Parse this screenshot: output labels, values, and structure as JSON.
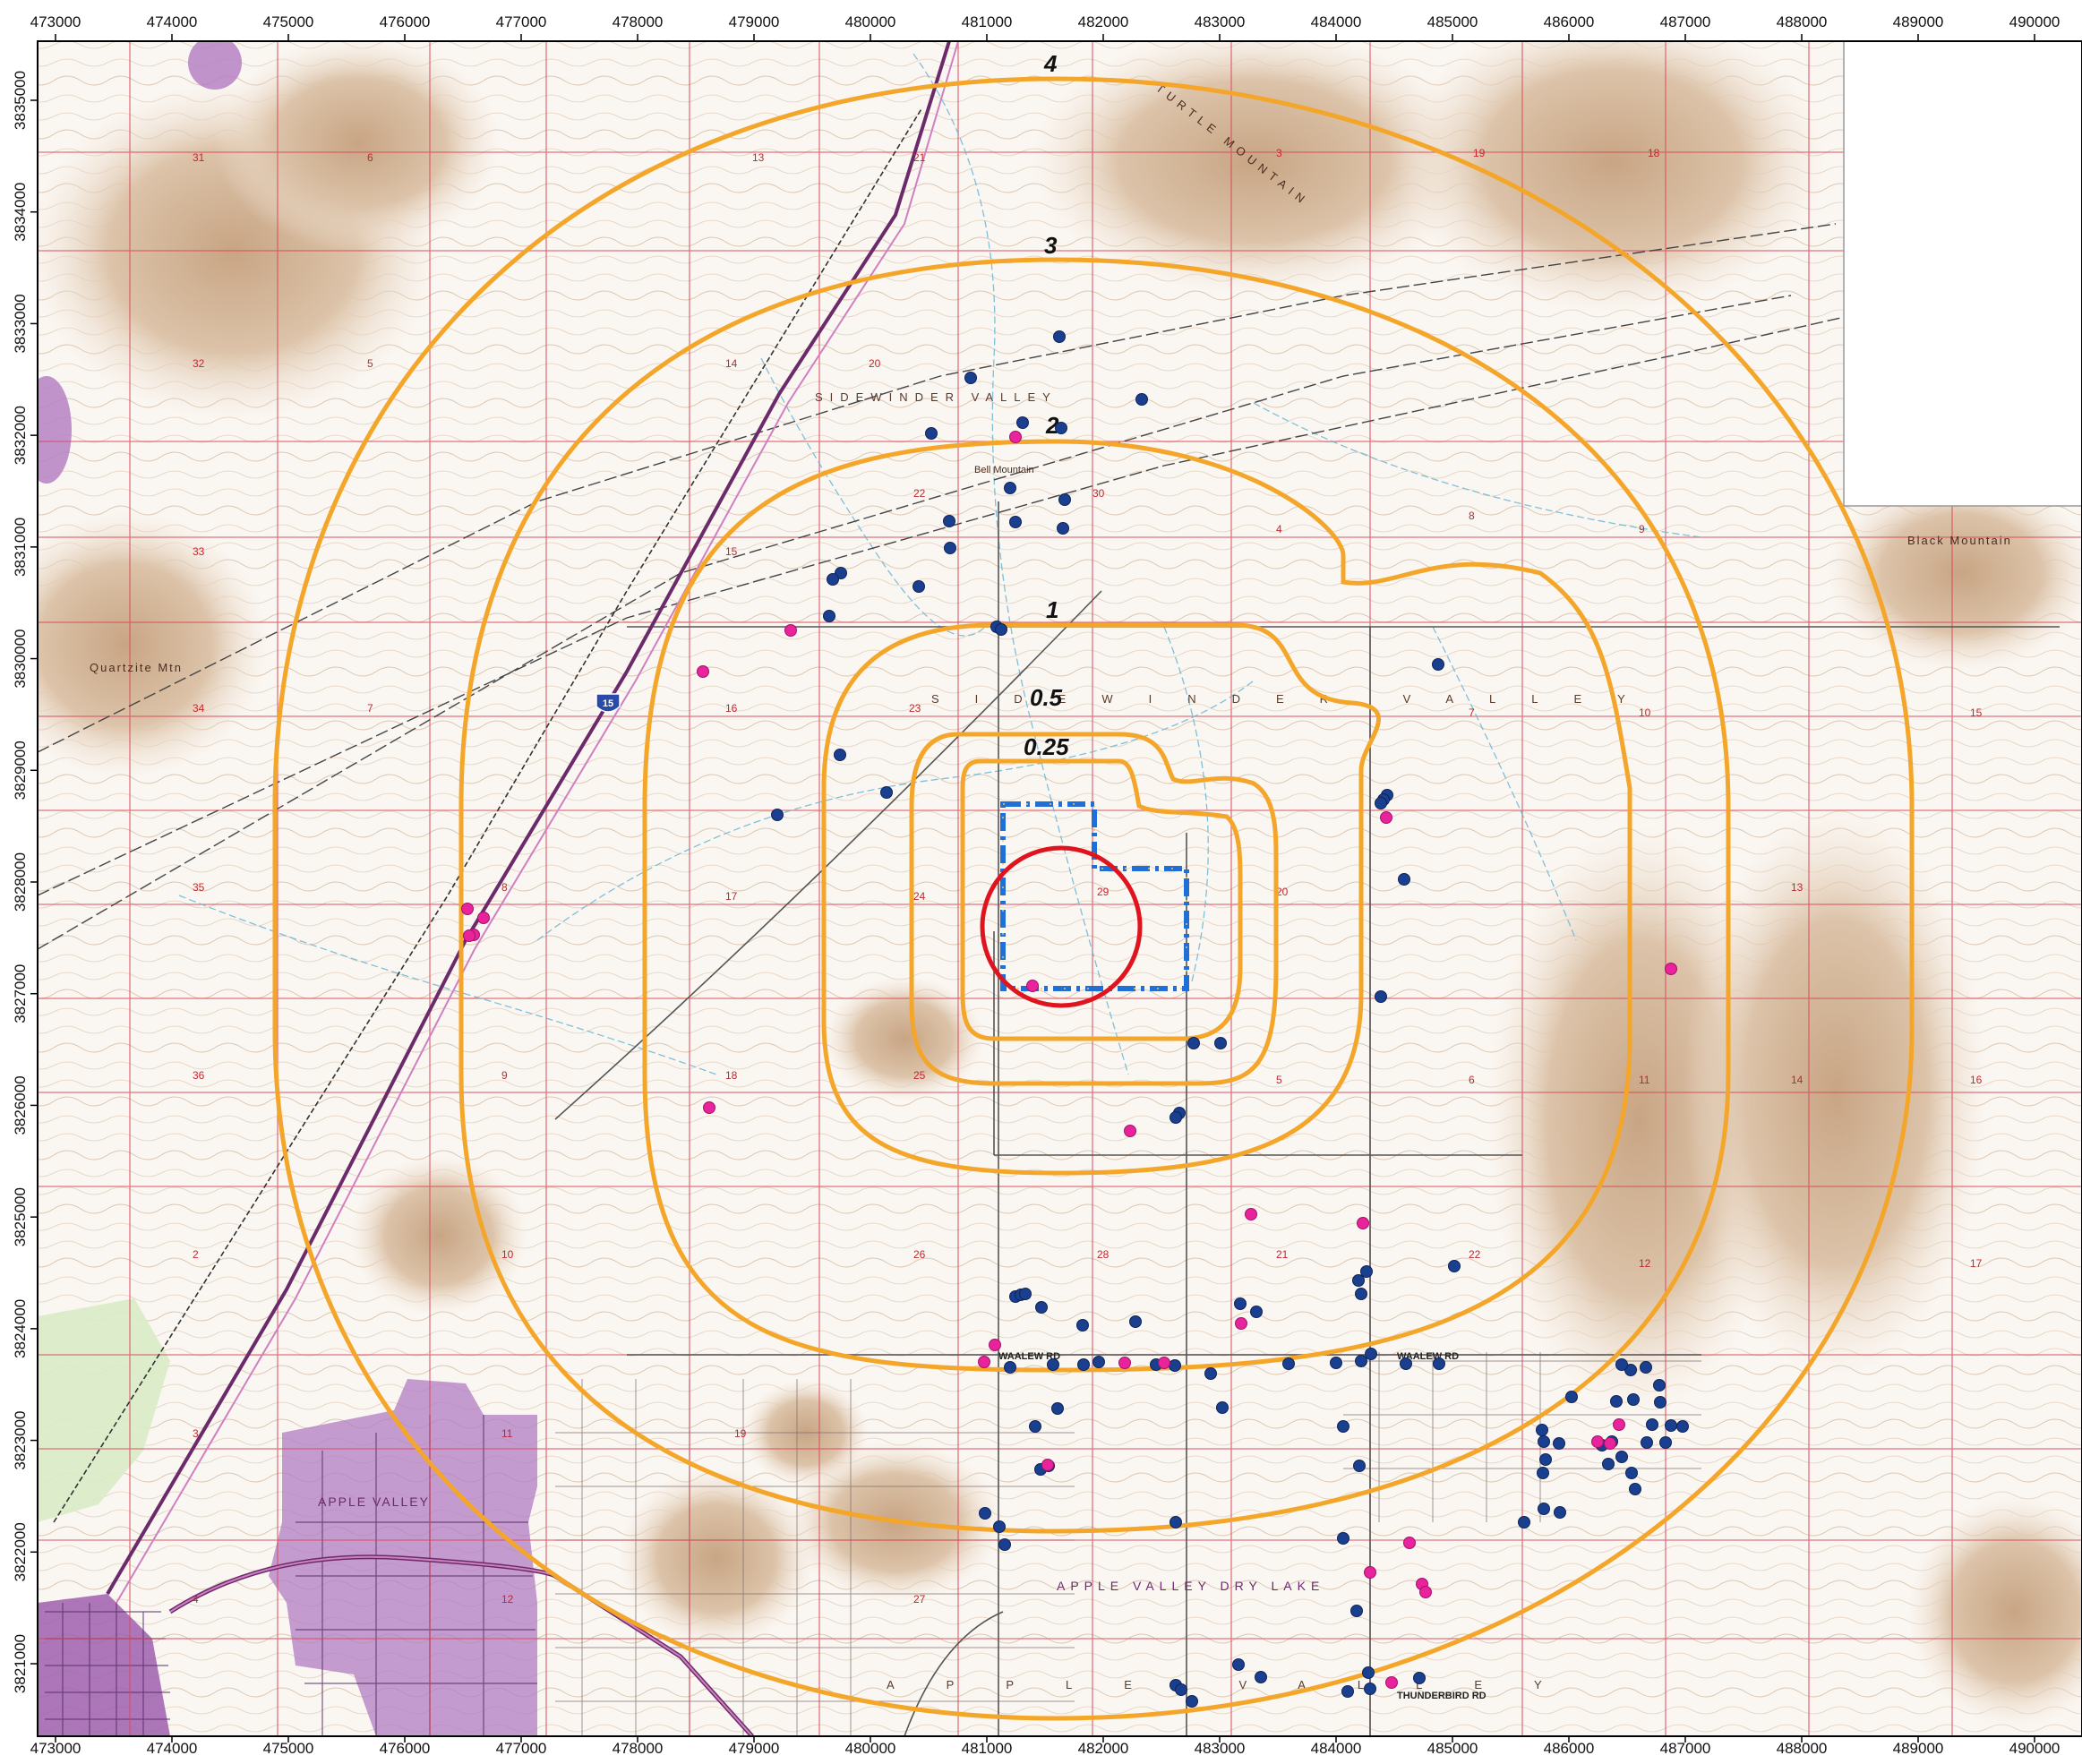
{
  "x_axis_ticks": [
    "473000",
    "474000",
    "475000",
    "476000",
    "477000",
    "478000",
    "479000",
    "480000",
    "481000",
    "482000",
    "483000",
    "484000",
    "485000",
    "486000",
    "487000",
    "488000",
    "489000",
    "490000"
  ],
  "y_axis_ticks": [
    "3835000",
    "3834000",
    "3833000",
    "3832000",
    "3831000",
    "3830000",
    "3829000",
    "3828000",
    "3827000",
    "3826000",
    "3825000",
    "3824000",
    "3823000",
    "3822000",
    "3821000"
  ],
  "ring_labels": [
    "4",
    "3",
    "2",
    "1",
    "0.5",
    "0.25"
  ],
  "place_names": {
    "sidewinder_valley_north": "SIDEWINDER VALLEY",
    "sidewinder_valley_central": "SIDEWINDER VALLEY",
    "apple_valley_town": "APPLE VALLEY",
    "apple_valley_dry_lake": "APPLE VALLEY DRY LAKE",
    "apple_valley_south": "APPLE VALLEY",
    "quartzite_mtn": "Quartzite Mtn",
    "black_mountain": "Black Mountain",
    "turtle_mountain": "TURTLE MOUNTAIN",
    "bell_mountain": "Bell Mountain",
    "interstate": "15",
    "walalew_rd_west": "WAALEW RD",
    "walalew_rd_east": "WAALEW RD",
    "thunderbird_rd": "THUNDERBIRD RD"
  },
  "section_numbers": [
    "31",
    "32",
    "33",
    "34",
    "35",
    "36",
    "2",
    "3",
    "4",
    "5",
    "6",
    "7",
    "8",
    "9",
    "10",
    "11",
    "12",
    "13",
    "14",
    "15",
    "16",
    "17",
    "18",
    "19",
    "20",
    "21",
    "22",
    "23",
    "24",
    "25",
    "26",
    "27",
    "28",
    "29",
    "30"
  ],
  "colors": {
    "buffer_rings": "#f4a62a",
    "site_boundary": "#1f6fd6",
    "radius_circle": "#e0141e",
    "well_blue": "#1b3f8f",
    "well_magenta": "#e8239b",
    "town_fill": "#b27cc2",
    "grid_lines": "#d8485a",
    "contours": "#b08a6a"
  },
  "legend_semantics": {
    "blue_dots": "well-icon",
    "magenta_dots": "site-icon"
  }
}
